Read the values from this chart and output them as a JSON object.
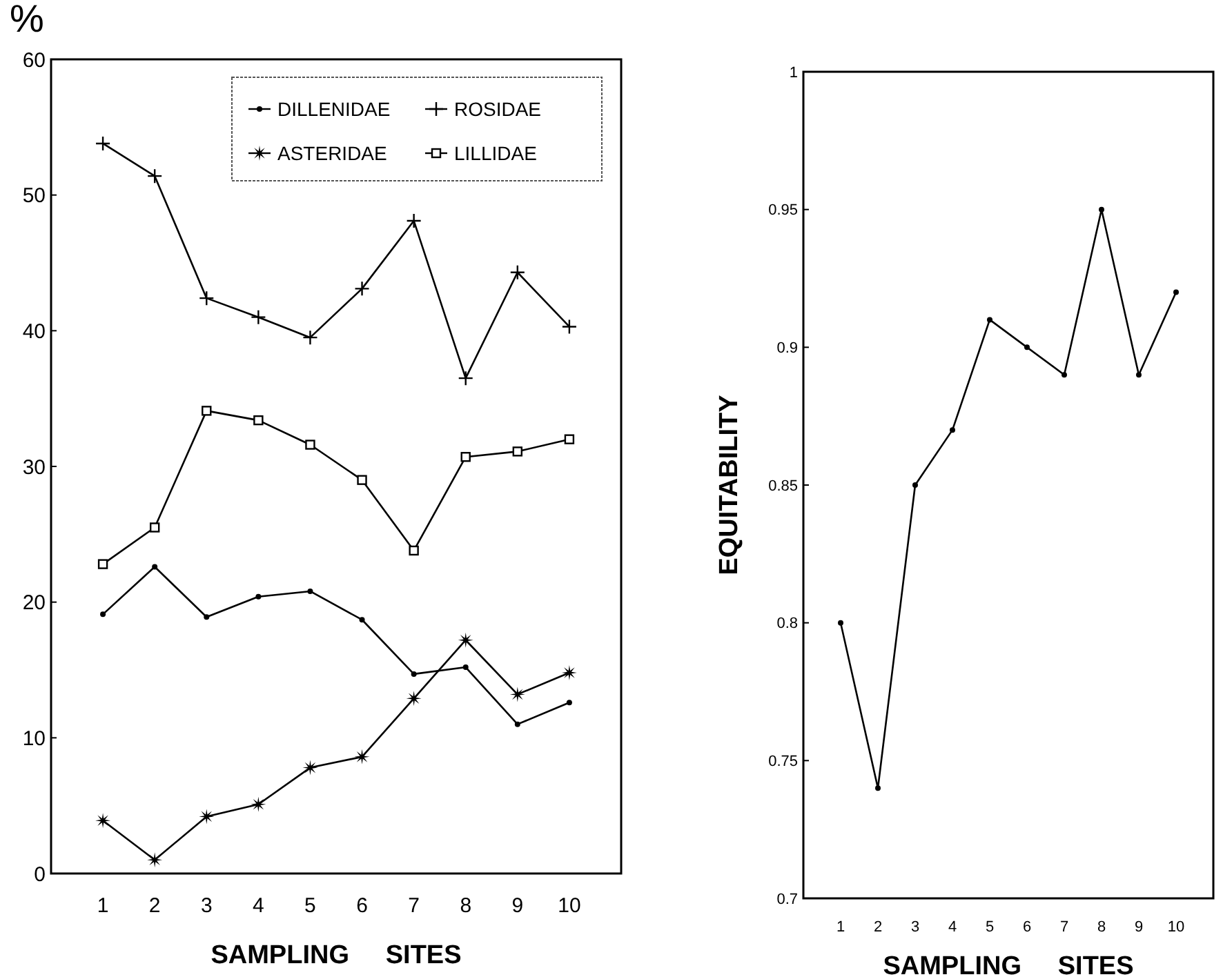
{
  "chart_data": [
    {
      "type": "line",
      "ylabel": "%",
      "xlabel": "SAMPLING     SITES",
      "categories": [
        "1",
        "2",
        "3",
        "4",
        "5",
        "6",
        "7",
        "8",
        "9",
        "10"
      ],
      "series": [
        {
          "name": "DILLENIDAE",
          "color": "#000000",
          "marker": "circle",
          "values": [
            19.1,
            22.6,
            18.9,
            20.4,
            20.8,
            18.7,
            14.7,
            15.2,
            11.0,
            12.6
          ]
        },
        {
          "name": "ROSIDAE",
          "color": "#000000",
          "marker": "cross",
          "values": [
            53.8,
            51.4,
            42.4,
            41.0,
            39.5,
            43.1,
            48.1,
            36.5,
            44.3,
            40.3
          ]
        },
        {
          "name": "ASTERIDAE",
          "color": "#000000",
          "marker": "star",
          "values": [
            3.9,
            1.0,
            4.2,
            5.1,
            7.8,
            8.6,
            12.9,
            17.2,
            13.2,
            14.8
          ]
        },
        {
          "name": "LILLIDAE",
          "color": "#000000",
          "marker": "square",
          "values": [
            22.8,
            25.5,
            34.1,
            33.4,
            31.6,
            29.0,
            23.8,
            30.7,
            31.1,
            32.0
          ]
        }
      ],
      "ylim": [
        0,
        60
      ],
      "yticks": [
        0,
        10,
        20,
        30,
        40,
        50,
        60
      ],
      "legend": "top right",
      "grid": false,
      "line_style": "solid"
    },
    {
      "type": "line",
      "ylabel": "EQUITABILITY",
      "xlabel": "SAMPLING     SITES",
      "categories": [
        "1",
        "2",
        "3",
        "4",
        "5",
        "6",
        "7",
        "8",
        "9",
        "10"
      ],
      "series": [
        {
          "color": "#000000",
          "marker": "circle",
          "values": [
            0.8,
            0.74,
            0.85,
            0.87,
            0.91,
            0.9,
            0.89,
            0.95,
            0.89,
            0.92
          ]
        }
      ],
      "ylim": [
        0.7,
        1
      ],
      "yticks": [
        0.7,
        0.75,
        0.8,
        0.85,
        0.9,
        0.95,
        1
      ],
      "grid": false,
      "line_style": "solid"
    }
  ]
}
